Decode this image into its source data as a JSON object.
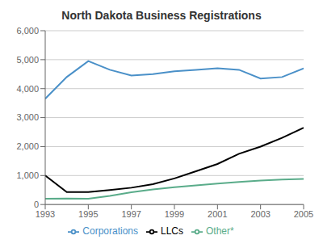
{
  "chart_data": {
    "type": "line",
    "title": "North Dakota Business Registrations",
    "x": [
      1993,
      1994,
      1995,
      1996,
      1997,
      1998,
      1999,
      2000,
      2001,
      2002,
      2003,
      2004,
      2005
    ],
    "series": [
      {
        "name": "LLCs",
        "color": "#000000",
        "values": [
          1000,
          430,
          430,
          500,
          580,
          700,
          900,
          1150,
          1400,
          1750,
          2000,
          2300,
          2650
        ]
      },
      {
        "name": "Corporations",
        "color": "#4a90c8",
        "values": [
          3650,
          4400,
          4950,
          4650,
          4450,
          4500,
          4600,
          4650,
          4700,
          4650,
          4350,
          4400,
          4700
        ]
      },
      {
        "name": "Other*",
        "color": "#5aac8a",
        "values": [
          200,
          210,
          200,
          300,
          420,
          520,
          600,
          660,
          720,
          780,
          830,
          860,
          880
        ]
      }
    ],
    "xlim": [
      1993,
      2005
    ],
    "xticks": [
      1993,
      1995,
      1997,
      1999,
      2001,
      2003,
      2005
    ],
    "ylim": [
      0,
      6000
    ],
    "yticks": [
      0,
      {
        "value": 1000,
        "label": "1,000"
      },
      {
        "value": 2000,
        "label": "2,000"
      },
      {
        "value": 3000,
        "label": "3,000"
      },
      {
        "value": 4000,
        "label": "4,000"
      },
      {
        "value": 5000,
        "label": "5,000"
      },
      {
        "value": 6000,
        "label": "6,000"
      }
    ],
    "grid": true,
    "legend": "bottom"
  }
}
